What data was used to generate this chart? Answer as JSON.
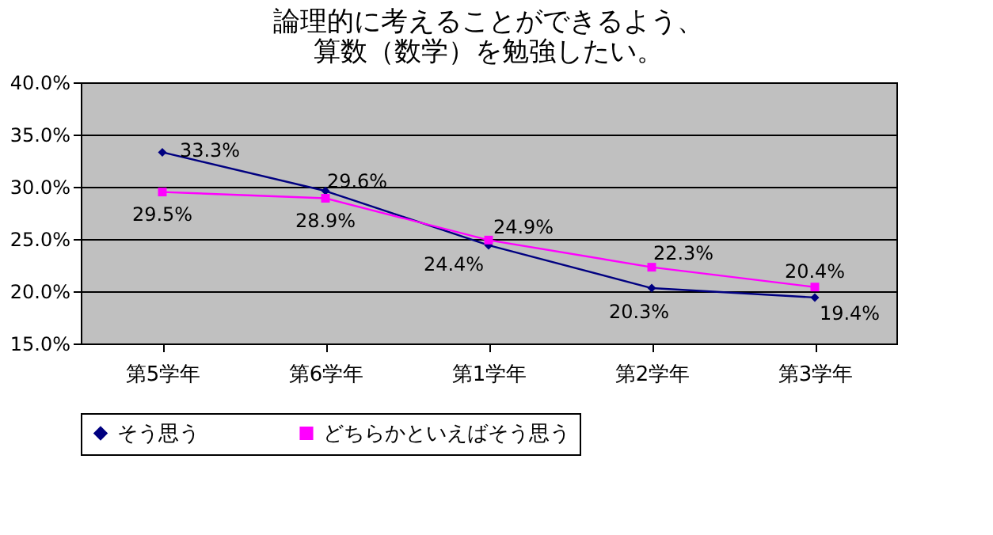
{
  "chart_data": {
    "type": "line",
    "title": [
      "論理的に考えることができるよう、",
      "算数（数学）を勉強したい。"
    ],
    "categories": [
      "第5学年",
      "第6学年",
      "第1学年",
      "第2学年",
      "第3学年"
    ],
    "series": [
      {
        "name": "そう思う",
        "color": "#000080",
        "marker": "diamond",
        "values": [
          33.3,
          29.6,
          24.4,
          20.3,
          19.4
        ],
        "value_labels": [
          "33.3%",
          "29.6%",
          "24.4%",
          "20.3%",
          "19.4%"
        ]
      },
      {
        "name": "どちらかといえばそう思う",
        "color": "#ff00ff",
        "marker": "square",
        "values": [
          29.5,
          28.9,
          24.9,
          22.3,
          20.4
        ],
        "value_labels": [
          "29.5%",
          "28.9%",
          "24.9%",
          "22.3%",
          "20.4%"
        ]
      }
    ],
    "ylim": [
      15,
      40
    ],
    "yticks": [
      {
        "value": 15,
        "label": "15.0%"
      },
      {
        "value": 20,
        "label": "20.0%"
      },
      {
        "value": 25,
        "label": "25.0%"
      },
      {
        "value": 30,
        "label": "30.0%"
      },
      {
        "value": 35,
        "label": "35.0%"
      },
      {
        "value": 40,
        "label": "40.0%"
      }
    ],
    "grid": "y",
    "legend": "bottom"
  }
}
